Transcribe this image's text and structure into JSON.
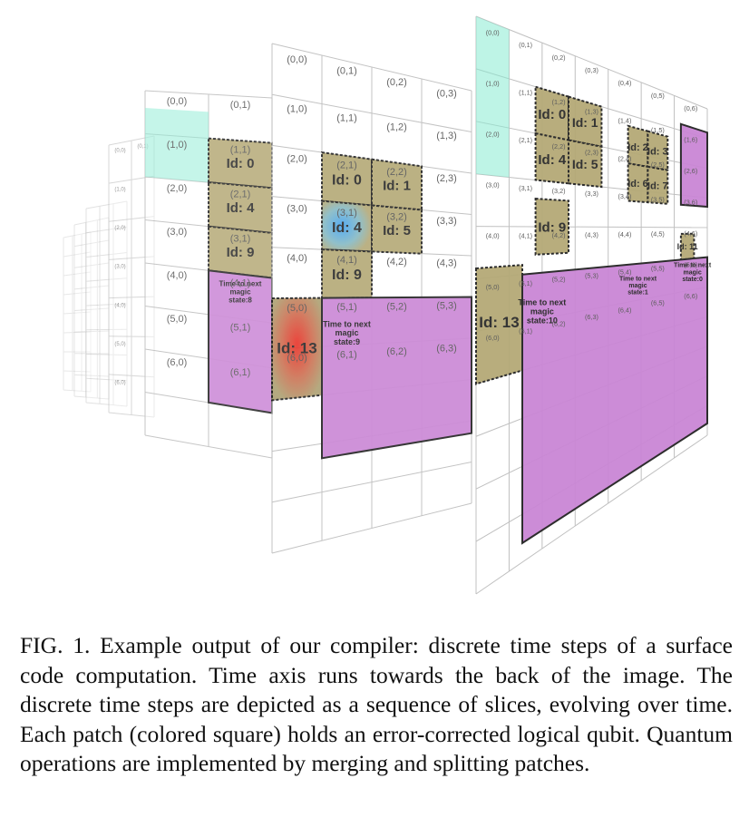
{
  "figure": {
    "colors": {
      "grid_line": "#bdbdbd",
      "patch_olive": "#b0a46f",
      "patch_magenta": "#c77fd3",
      "patch_teal": "#84ead0",
      "patch_red": "#e02a1c",
      "patch_blue": "#4aa8e8",
      "cell_bg": "#ffffff"
    },
    "slice_labels": [
      {
        "labels": [
          "(0,0)",
          "(0,1)",
          "(1,0)",
          "(2,0)",
          "(3,0)",
          "(4,0)",
          "(5,0)",
          "(6,0)"
        ]
      },
      {
        "labels": [
          "(0,0)",
          "(0,1)",
          "(1,0)",
          "(2,0)",
          "(3,0)",
          "(4,0)",
          "(5,0)",
          "(6,0)",
          "(4,1)",
          "(5,1)",
          "(6,1)",
          "(3,1)",
          "(2,1)",
          "(1,1)"
        ]
      },
      {
        "labels": [
          "(0,0)",
          "(0,1)",
          "(0,2)",
          "(0,3)",
          "(1,0)",
          "(2,0)",
          "(3,0)",
          "(4,0)",
          "(5,0)",
          "(6,0)",
          "(1,1)",
          "(1,2)",
          "(1,3)",
          "(2,1)",
          "(2,2)",
          "(2,3)",
          "(3,1)",
          "(3,2)",
          "(3,3)",
          "(4,1)",
          "(4,2)",
          "(4,3)",
          "(5,1)",
          "(5,2)",
          "(5,3)",
          "(6,1)",
          "(6,2)",
          "(6,3)"
        ]
      },
      {
        "labels": [
          "(0,0)",
          "(0,1)",
          "(0,2)",
          "(0,3)",
          "(0,4)",
          "(0,5)",
          "(0,6)",
          "(1,0)",
          "(2,0)",
          "(3,0)",
          "(4,0)",
          "(5,0)",
          "(6,0)",
          "(1,1)",
          "(1,2)",
          "(1,3)",
          "(1,4)",
          "(1,5)",
          "(1,6)",
          "(2,1)",
          "(2,2)",
          "(2,3)",
          "(2,4)",
          "(2,5)",
          "(2,6)",
          "(3,1)",
          "(3,2)",
          "(3,3)",
          "(3,4)",
          "(3,5)",
          "(3,6)",
          "(4,1)",
          "(4,2)",
          "(4,3)",
          "(4,4)",
          "(4,5)",
          "(4,6)",
          "(5,1)",
          "(5,2)",
          "(5,3)",
          "(5,4)",
          "(5,5)",
          "(5,6)",
          "(6,1)",
          "(6,2)",
          "(6,3)",
          "(6,4)",
          "(6,5)",
          "(6,6)"
        ]
      }
    ],
    "patches": {
      "slice1": {
        "ids": [
          "Id: 0",
          "Id: 4",
          "Id: 9",
          "Id: 1",
          "Id: 5"
        ],
        "magic": "Time to next magic state:8"
      },
      "slice2": {
        "ids": [
          "Id: 0",
          "Id: 1",
          "Id: 4",
          "Id: 5",
          "Id: 9",
          "Id: 13",
          "Id: 7"
        ],
        "magic": "Time to next magic state:9"
      },
      "slice3": {
        "ids": [
          "Id: 0",
          "Id: 1",
          "Id: 4",
          "Id: 5",
          "Id: 9",
          "Id: 13",
          "Id: 2",
          "Id: 3",
          "Id: 6",
          "Id: 7",
          "Id: 11"
        ],
        "magic": "Time to next magic state:10",
        "magic_b": "Time to next magic state:1",
        "magic_c": "Time to next magic state:0"
      }
    }
  },
  "caption": {
    "text": "FIG. 1.  Example output of our compiler: discrete time steps of a surface code computation. Time axis runs towards the back of the image. The discrete time steps are depicted as a sequence of slices, evolving over time. Each patch (colored square) holds an error-corrected logical qubit. Quantum operations are implemented by merging and splitting patches."
  }
}
